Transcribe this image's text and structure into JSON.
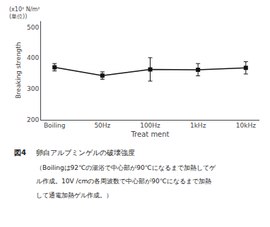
{
  "chart_data": {
    "type": "line",
    "title": "卵白アルブミンゲルの破壊強度",
    "xlabel": "Treat ment",
    "ylabel": "Breaking strength",
    "annotations": [
      "(x10² N/m²",
      "(単位))",
      "図4",
      "（Boilingは92℃の湯浴で中心部が90℃になるまで加熱してゲ",
      "ル作成。10V /cmの各周波数で中心部が90℃になるまで加熱",
      "して通電加熱ゲル作成。）"
    ],
    "categories": [
      "Boiling",
      "50Hz",
      "100Hz",
      "1kHz",
      "10kHz"
    ],
    "values": [
      370,
      343,
      363,
      362,
      368
    ],
    "errors": [
      12,
      12,
      38,
      20,
      20
    ],
    "color": "#111111",
    "marker": "square",
    "line_style": "solid",
    "ylim": [
      200,
      520
    ],
    "yticks": [
      200,
      300,
      400,
      500
    ],
    "grid": false
  }
}
